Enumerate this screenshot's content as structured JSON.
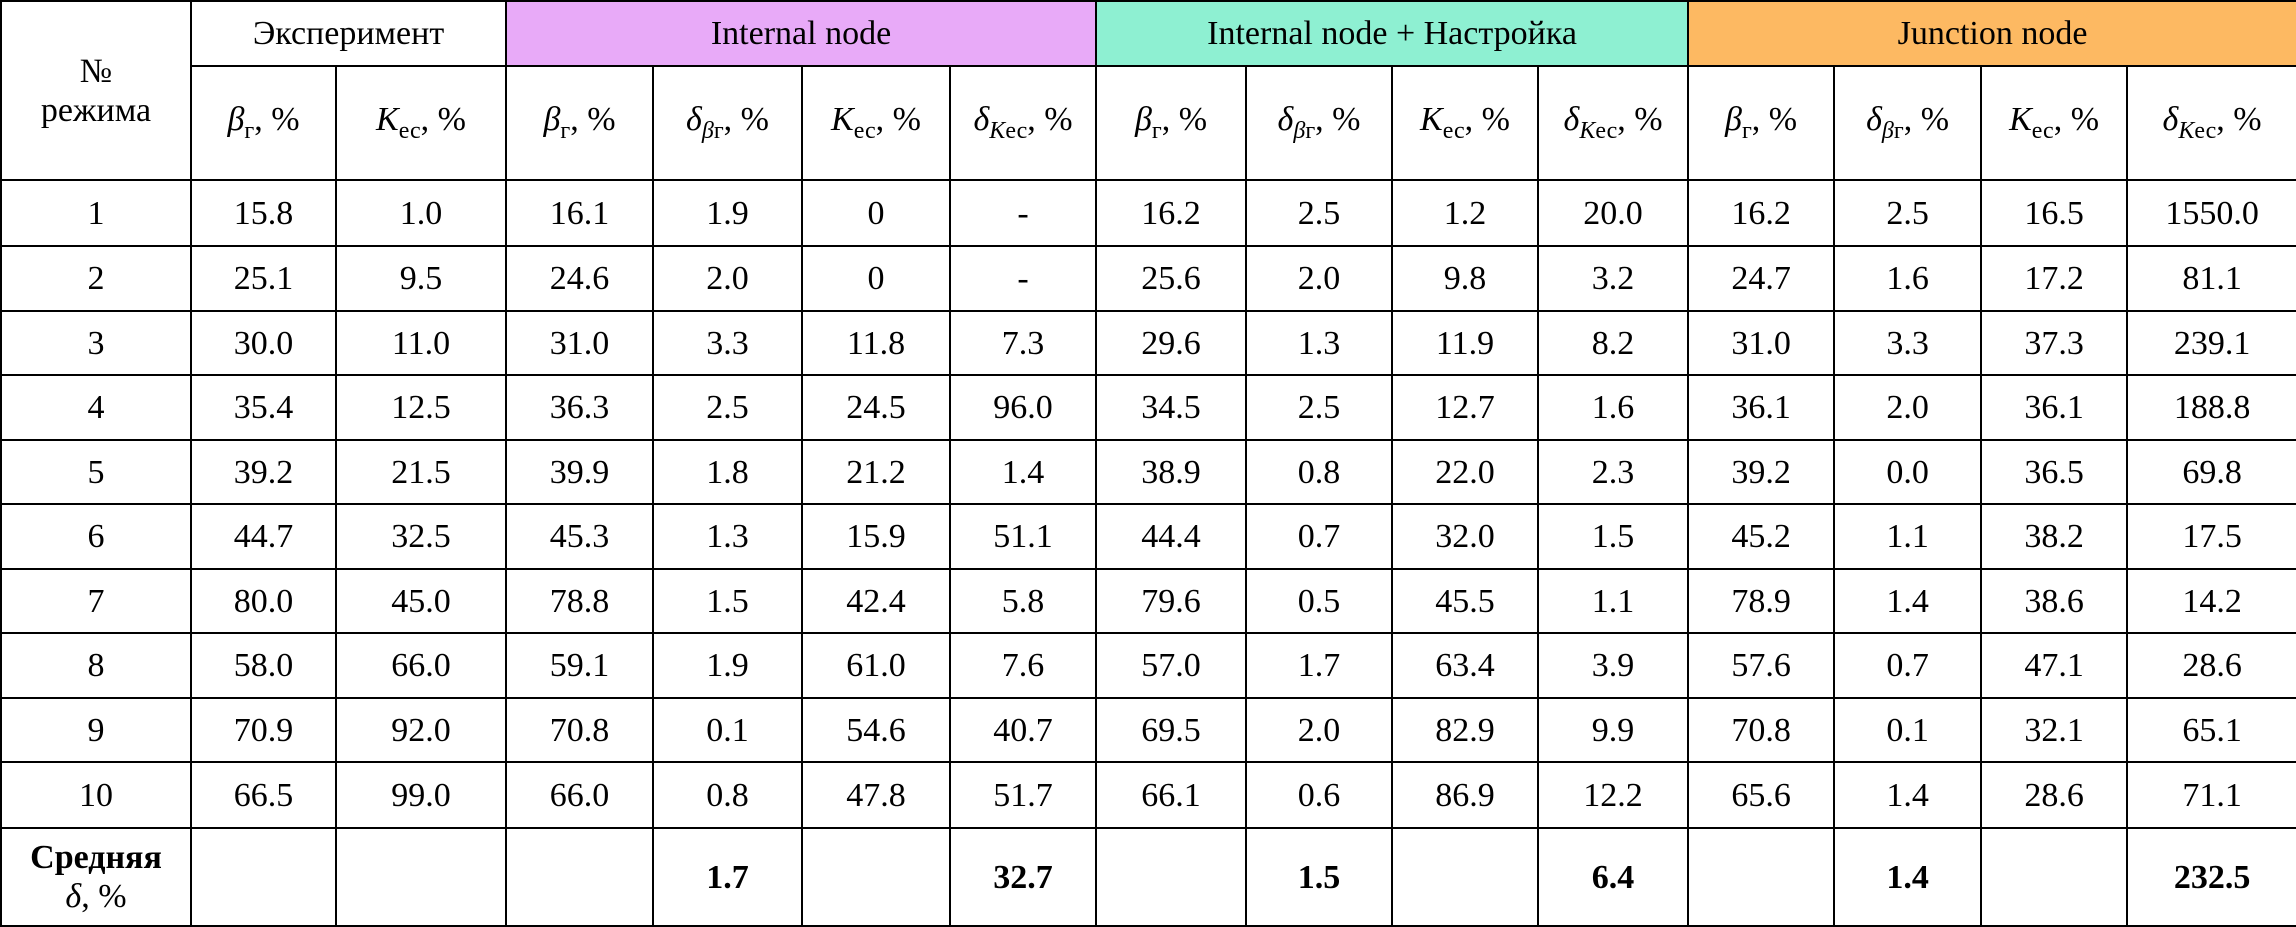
{
  "table": {
    "corner": [
      "№",
      "режима"
    ],
    "groups": [
      {
        "name": "Эксперимент",
        "color": "#ffffff",
        "span": 2
      },
      {
        "name": "Internal node",
        "color": "#e8aaf8",
        "span": 4
      },
      {
        "name": "Internal node + Настройка",
        "color": "#8ef0d2",
        "span": 4
      },
      {
        "name": "Junction node",
        "color": "#fdb962",
        "span": 4
      }
    ],
    "columns": [
      {
        "symbol": "β",
        "sub": "г",
        "suffix": ", %"
      },
      {
        "symbol": "K",
        "sub": "ес",
        "suffix": ", %"
      },
      {
        "symbol": "β",
        "sub": "г",
        "suffix": ", %"
      },
      {
        "symbol": "δ",
        "sub": "βг",
        "suffix": ", %"
      },
      {
        "symbol": "K",
        "sub": "ес",
        "suffix": ", %"
      },
      {
        "symbol": "δ",
        "sub": "Kес",
        "suffix": ", %"
      },
      {
        "symbol": "β",
        "sub": "г",
        "suffix": ", %"
      },
      {
        "symbol": "δ",
        "sub": "βг",
        "suffix": ", %"
      },
      {
        "symbol": "K",
        "sub": "ес",
        "suffix": ", %"
      },
      {
        "symbol": "δ",
        "sub": "Kес",
        "suffix": ", %"
      },
      {
        "symbol": "β",
        "sub": "г",
        "suffix": ", %"
      },
      {
        "symbol": "δ",
        "sub": "βг",
        "suffix": ", %"
      },
      {
        "symbol": "K",
        "sub": "ес",
        "suffix": ", %"
      },
      {
        "symbol": "δ",
        "sub": "Kес",
        "suffix": ", %"
      }
    ],
    "rows": [
      [
        "1",
        "15.8",
        "1.0",
        "16.1",
        "1.9",
        "0",
        "-",
        "16.2",
        "2.5",
        "1.2",
        "20.0",
        "16.2",
        "2.5",
        "16.5",
        "1550.0"
      ],
      [
        "2",
        "25.1",
        "9.5",
        "24.6",
        "2.0",
        "0",
        "-",
        "25.6",
        "2.0",
        "9.8",
        "3.2",
        "24.7",
        "1.6",
        "17.2",
        "81.1"
      ],
      [
        "3",
        "30.0",
        "11.0",
        "31.0",
        "3.3",
        "11.8",
        "7.3",
        "29.6",
        "1.3",
        "11.9",
        "8.2",
        "31.0",
        "3.3",
        "37.3",
        "239.1"
      ],
      [
        "4",
        "35.4",
        "12.5",
        "36.3",
        "2.5",
        "24.5",
        "96.0",
        "34.5",
        "2.5",
        "12.7",
        "1.6",
        "36.1",
        "2.0",
        "36.1",
        "188.8"
      ],
      [
        "5",
        "39.2",
        "21.5",
        "39.9",
        "1.8",
        "21.2",
        "1.4",
        "38.9",
        "0.8",
        "22.0",
        "2.3",
        "39.2",
        "0.0",
        "36.5",
        "69.8"
      ],
      [
        "6",
        "44.7",
        "32.5",
        "45.3",
        "1.3",
        "15.9",
        "51.1",
        "44.4",
        "0.7",
        "32.0",
        "1.5",
        "45.2",
        "1.1",
        "38.2",
        "17.5"
      ],
      [
        "7",
        "80.0",
        "45.0",
        "78.8",
        "1.5",
        "42.4",
        "5.8",
        "79.6",
        "0.5",
        "45.5",
        "1.1",
        "78.9",
        "1.4",
        "38.6",
        "14.2"
      ],
      [
        "8",
        "58.0",
        "66.0",
        "59.1",
        "1.9",
        "61.0",
        "7.6",
        "57.0",
        "1.7",
        "63.4",
        "3.9",
        "57.6",
        "0.7",
        "47.1",
        "28.6"
      ],
      [
        "9",
        "70.9",
        "92.0",
        "70.8",
        "0.1",
        "54.6",
        "40.7",
        "69.5",
        "2.0",
        "82.9",
        "9.9",
        "70.8",
        "0.1",
        "32.1",
        "65.1"
      ],
      [
        "10",
        "66.5",
        "99.0",
        "66.0",
        "0.8",
        "47.8",
        "51.7",
        "66.1",
        "0.6",
        "86.9",
        "12.2",
        "65.6",
        "1.4",
        "28.6",
        "71.1"
      ]
    ],
    "footer": {
      "label": "Средняя",
      "sublabel": {
        "symbol": "δ",
        "suffix": ", %"
      },
      "values": [
        null,
        null,
        null,
        "1.7",
        null,
        "32.7",
        null,
        "1.5",
        null,
        "6.4",
        null,
        "1.4",
        null,
        "232.5"
      ]
    }
  }
}
